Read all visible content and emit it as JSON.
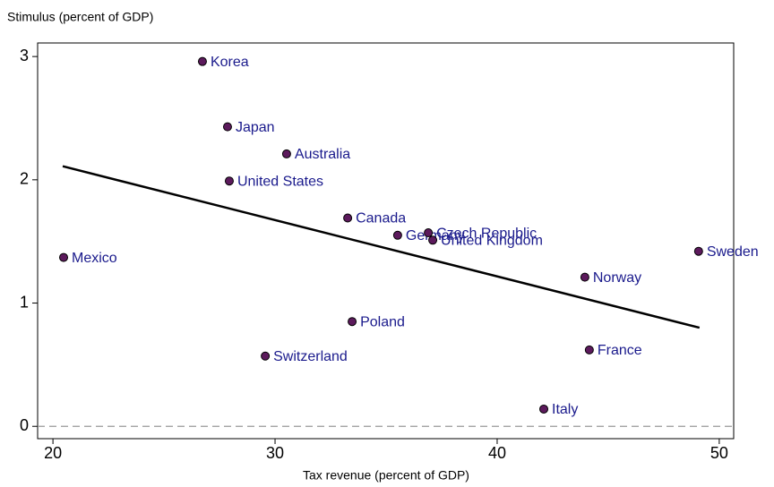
{
  "chart_data": {
    "type": "scatter",
    "y_label": "Stimulus (percent of GDP)",
    "x_label": "Tax revenue (percent of GDP)",
    "point_color": "#5c1a5c",
    "label_color": "#1a1a8c",
    "labels": [
      "Korea",
      "Japan",
      "Australia",
      "United States",
      "Canada",
      "Germany",
      "Czech Republic",
      "United Kingdom",
      "Mexico",
      "Sweden",
      "Norway",
      "Poland",
      "Switzerland",
      "France",
      "Italy"
    ],
    "x": [
      26.73,
      27.86,
      30.52,
      27.94,
      33.27,
      35.52,
      36.9,
      37.1,
      20.48,
      49.07,
      43.95,
      33.47,
      29.56,
      44.15,
      42.1
    ],
    "y": [
      2.96,
      2.43,
      2.21,
      1.99,
      1.69,
      1.55,
      1.57,
      1.51,
      1.37,
      1.42,
      1.21,
      0.85,
      0.57,
      0.62,
      0.14
    ],
    "fit_line": {
      "x": [
        20.44,
        49.11
      ],
      "y": [
        2.11,
        0.8
      ]
    },
    "reference_line": 0,
    "xlim": [
      19.31,
      50.65
    ],
    "ylim": [
      -0.1,
      3.11
    ],
    "xticks": [
      20,
      30,
      40,
      50
    ],
    "yticks": [
      0,
      1,
      2,
      3
    ]
  }
}
